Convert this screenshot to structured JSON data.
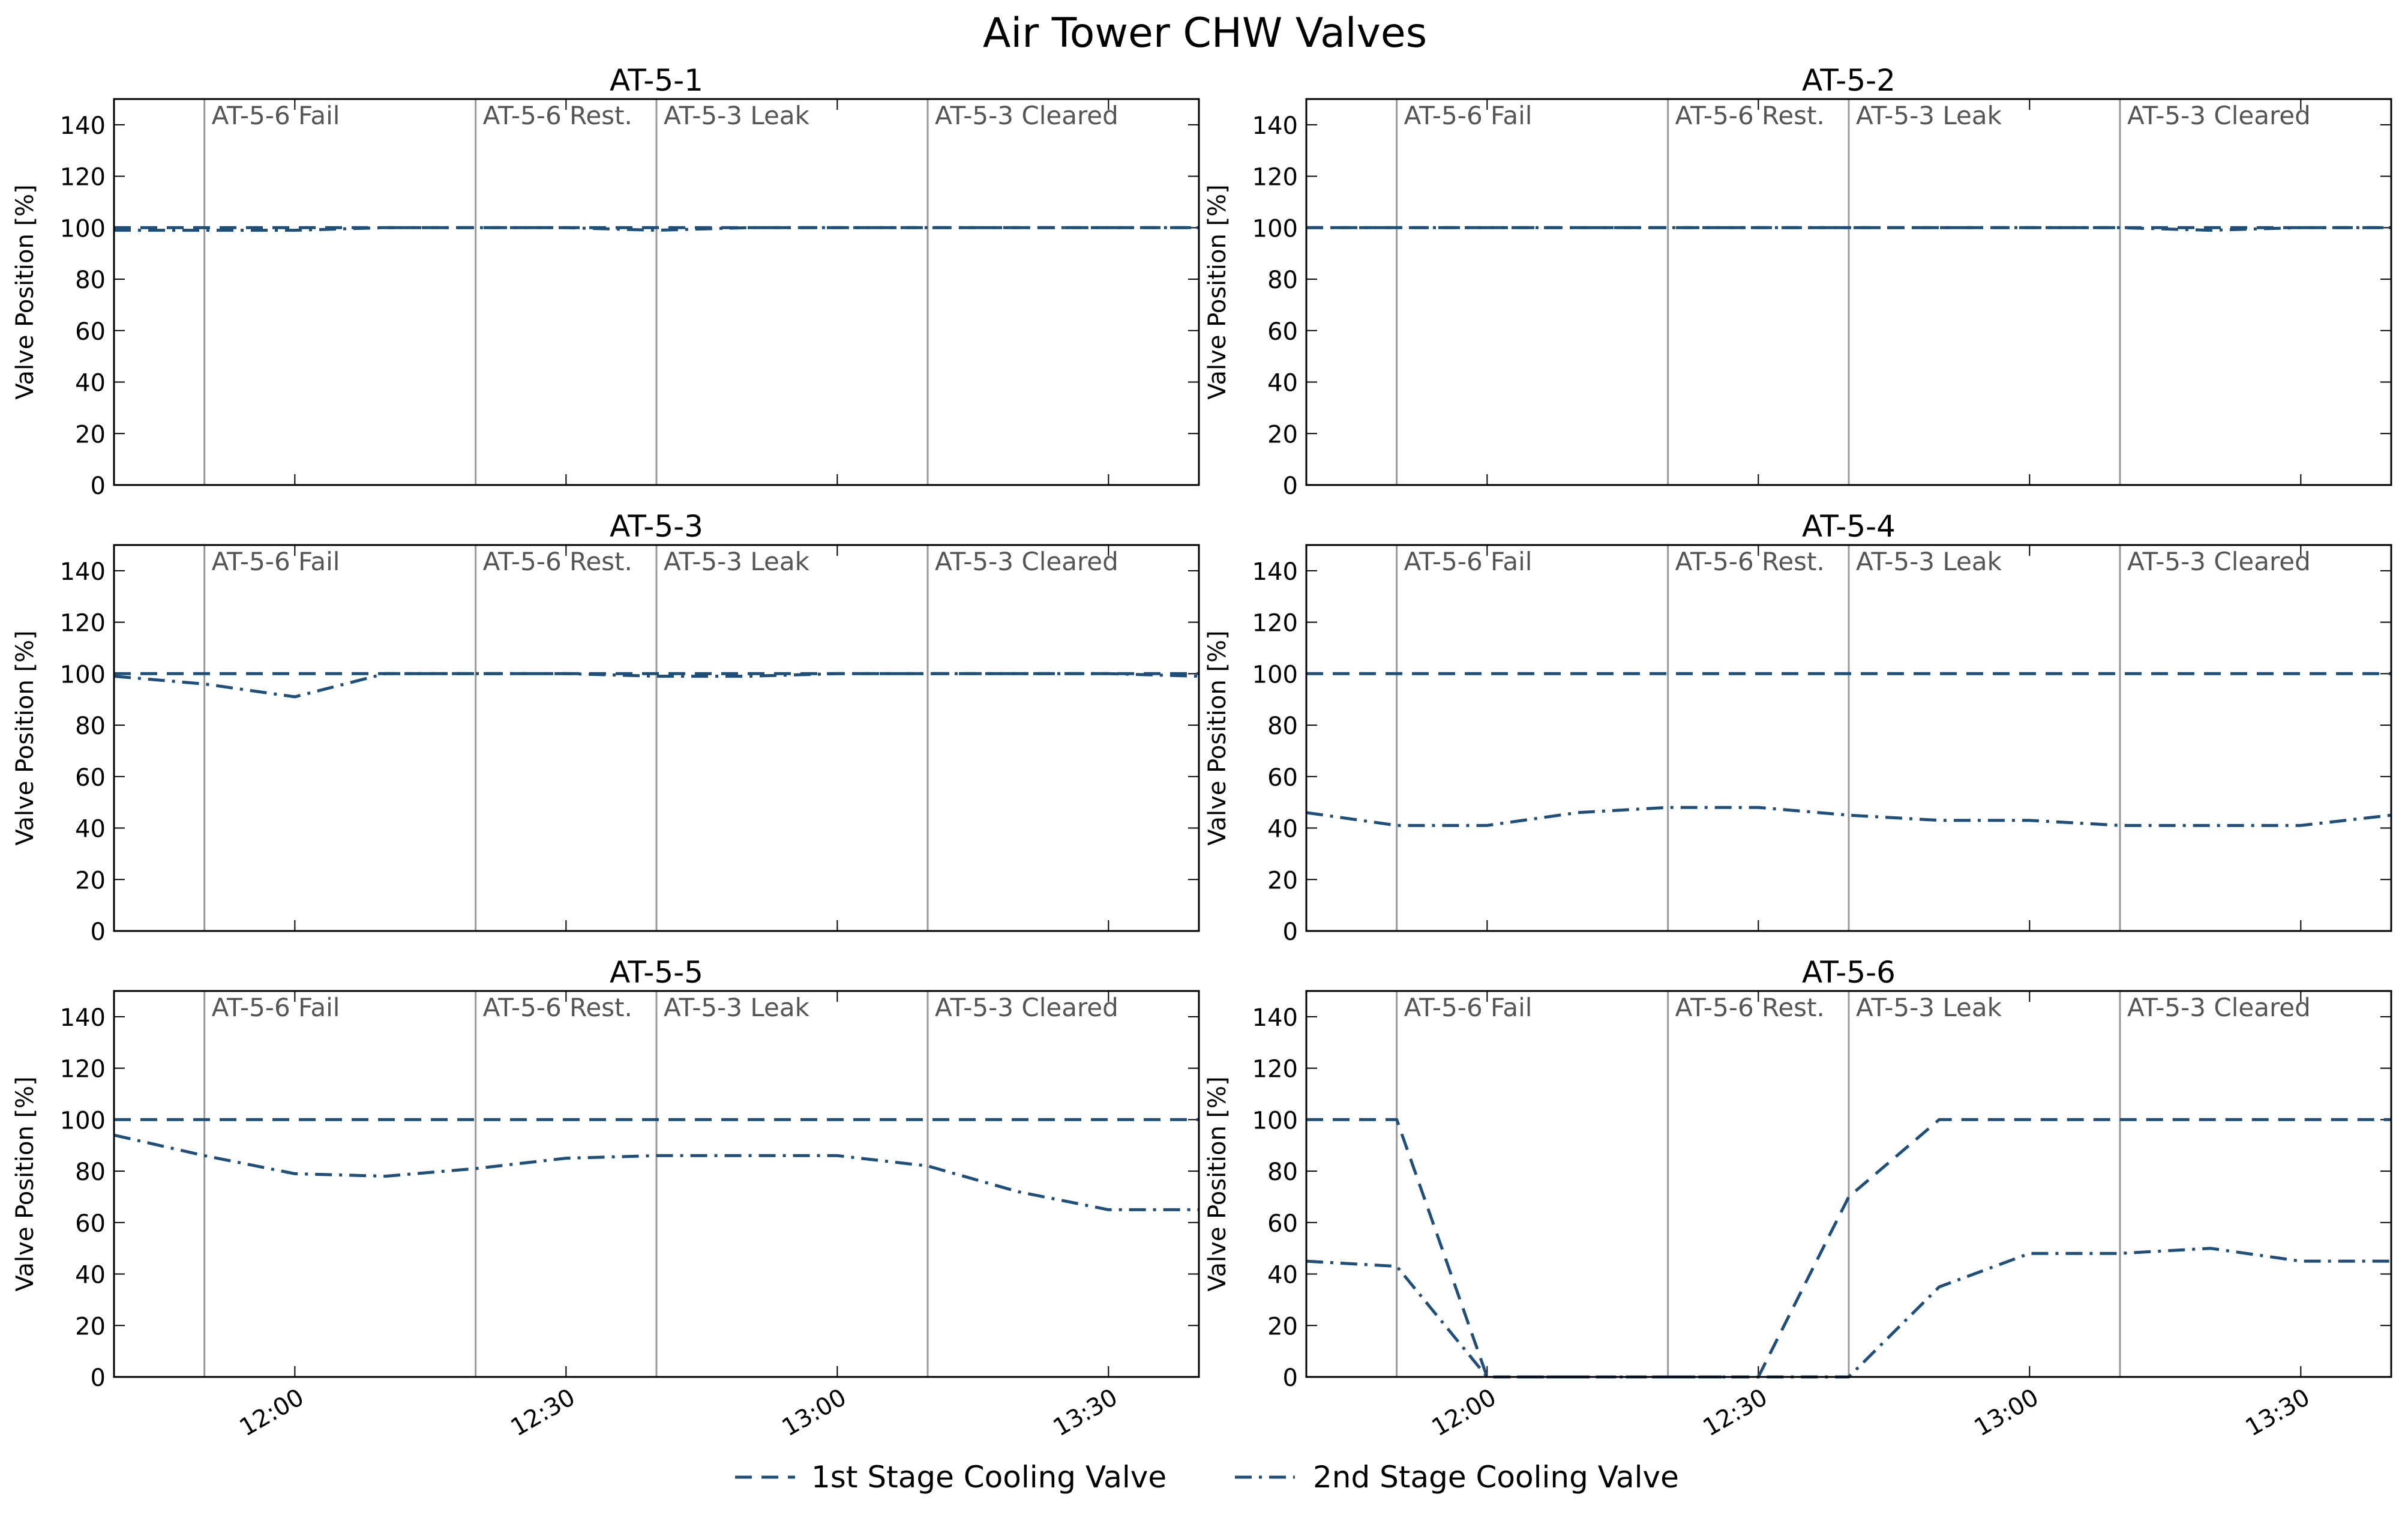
{
  "figure": {
    "title": "Air Tower CHW Valves"
  },
  "legend": {
    "placement": "bottom-center",
    "entries": [
      {
        "label": "1st Stage Cooling Valve",
        "style": "dashed",
        "color": "#1f4e79"
      },
      {
        "label": "2nd Stage Cooling Valve",
        "style": "dashdot",
        "color": "#1f4e79"
      }
    ]
  },
  "colors": {
    "series": "#1f4e79",
    "event_line": "#999999",
    "event_text": "#555555"
  },
  "chart_data": [
    {
      "type": "line",
      "title": "AT-5-1",
      "ylabel": "Valve Position [%]",
      "xlim": [
        "11:40",
        "13:40"
      ],
      "ylim": [
        0,
        150
      ],
      "yticks": [
        0,
        20,
        40,
        60,
        80,
        100,
        120,
        140
      ],
      "xticks": [
        "12:00",
        "12:30",
        "13:00",
        "13:30"
      ],
      "xtick_labels_shown": false,
      "grid": false,
      "events": [
        {
          "time": "11:50",
          "label": "AT-5-6 Fail"
        },
        {
          "time": "12:20",
          "label": "AT-5-6 Rest."
        },
        {
          "time": "12:40",
          "label": "AT-5-3 Leak"
        },
        {
          "time": "13:10",
          "label": "AT-5-3 Cleared"
        }
      ],
      "series": [
        {
          "name": "1st Stage Cooling Valve",
          "style": "dashed",
          "x": [
            "11:40",
            "13:40"
          ],
          "y": [
            100,
            100
          ]
        },
        {
          "name": "2nd Stage Cooling Valve",
          "style": "dashdot",
          "x": [
            "11:40",
            "11:50",
            "12:00",
            "12:10",
            "12:20",
            "12:30",
            "12:40",
            "12:50",
            "13:00",
            "13:10",
            "13:20",
            "13:30",
            "13:40"
          ],
          "y": [
            99,
            99,
            99,
            100,
            100,
            100,
            99,
            100,
            100,
            100,
            100,
            100,
            100
          ]
        }
      ]
    },
    {
      "type": "line",
      "title": "AT-5-2",
      "ylabel": "Valve Position [%]",
      "xlim": [
        "11:40",
        "13:40"
      ],
      "ylim": [
        0,
        150
      ],
      "yticks": [
        0,
        20,
        40,
        60,
        80,
        100,
        120,
        140
      ],
      "xticks": [
        "12:00",
        "12:30",
        "13:00",
        "13:30"
      ],
      "xtick_labels_shown": false,
      "grid": false,
      "events": [
        {
          "time": "11:50",
          "label": "AT-5-6 Fail"
        },
        {
          "time": "12:20",
          "label": "AT-5-6 Rest."
        },
        {
          "time": "12:40",
          "label": "AT-5-3 Leak"
        },
        {
          "time": "13:10",
          "label": "AT-5-3 Cleared"
        }
      ],
      "series": [
        {
          "name": "1st Stage Cooling Valve",
          "style": "dashed",
          "x": [
            "11:40",
            "13:40"
          ],
          "y": [
            100,
            100
          ]
        },
        {
          "name": "2nd Stage Cooling Valve",
          "style": "dashdot",
          "x": [
            "11:40",
            "11:50",
            "12:00",
            "12:10",
            "12:20",
            "12:30",
            "12:40",
            "12:50",
            "13:00",
            "13:10",
            "13:20",
            "13:30",
            "13:40"
          ],
          "y": [
            100,
            100,
            100,
            100,
            100,
            100,
            100,
            100,
            100,
            100,
            99,
            100,
            100
          ]
        }
      ]
    },
    {
      "type": "line",
      "title": "AT-5-3",
      "ylabel": "Valve Position [%]",
      "xlim": [
        "11:40",
        "13:40"
      ],
      "ylim": [
        0,
        150
      ],
      "yticks": [
        0,
        20,
        40,
        60,
        80,
        100,
        120,
        140
      ],
      "xticks": [
        "12:00",
        "12:30",
        "13:00",
        "13:30"
      ],
      "xtick_labels_shown": false,
      "grid": false,
      "events": [
        {
          "time": "11:50",
          "label": "AT-5-6 Fail"
        },
        {
          "time": "12:20",
          "label": "AT-5-6 Rest."
        },
        {
          "time": "12:40",
          "label": "AT-5-3 Leak"
        },
        {
          "time": "13:10",
          "label": "AT-5-3 Cleared"
        }
      ],
      "series": [
        {
          "name": "1st Stage Cooling Valve",
          "style": "dashed",
          "x": [
            "11:40",
            "13:40"
          ],
          "y": [
            100,
            100
          ]
        },
        {
          "name": "2nd Stage Cooling Valve",
          "style": "dashdot",
          "x": [
            "11:40",
            "11:50",
            "12:00",
            "12:10",
            "12:20",
            "12:30",
            "12:40",
            "12:50",
            "13:00",
            "13:10",
            "13:20",
            "13:30",
            "13:40"
          ],
          "y": [
            99,
            96,
            91,
            100,
            100,
            100,
            99,
            99,
            100,
            100,
            100,
            100,
            99
          ]
        }
      ]
    },
    {
      "type": "line",
      "title": "AT-5-4",
      "ylabel": "Valve Position [%]",
      "xlim": [
        "11:40",
        "13:40"
      ],
      "ylim": [
        0,
        150
      ],
      "yticks": [
        0,
        20,
        40,
        60,
        80,
        100,
        120,
        140
      ],
      "xticks": [
        "12:00",
        "12:30",
        "13:00",
        "13:30"
      ],
      "xtick_labels_shown": false,
      "grid": false,
      "events": [
        {
          "time": "11:50",
          "label": "AT-5-6 Fail"
        },
        {
          "time": "12:20",
          "label": "AT-5-6 Rest."
        },
        {
          "time": "12:40",
          "label": "AT-5-3 Leak"
        },
        {
          "time": "13:10",
          "label": "AT-5-3 Cleared"
        }
      ],
      "series": [
        {
          "name": "1st Stage Cooling Valve",
          "style": "dashed",
          "x": [
            "11:40",
            "13:40"
          ],
          "y": [
            100,
            100
          ]
        },
        {
          "name": "2nd Stage Cooling Valve",
          "style": "dashdot",
          "x": [
            "11:40",
            "11:50",
            "12:00",
            "12:10",
            "12:20",
            "12:30",
            "12:40",
            "12:50",
            "13:00",
            "13:10",
            "13:20",
            "13:30",
            "13:40"
          ],
          "y": [
            46,
            41,
            41,
            46,
            48,
            48,
            45,
            43,
            43,
            41,
            41,
            41,
            45
          ]
        }
      ]
    },
    {
      "type": "line",
      "title": "AT-5-5",
      "ylabel": "Valve Position [%]",
      "xlim": [
        "11:40",
        "13:40"
      ],
      "ylim": [
        0,
        150
      ],
      "yticks": [
        0,
        20,
        40,
        60,
        80,
        100,
        120,
        140
      ],
      "xticks": [
        "12:00",
        "12:30",
        "13:00",
        "13:30"
      ],
      "xtick_labels_shown": true,
      "grid": false,
      "events": [
        {
          "time": "11:50",
          "label": "AT-5-6 Fail"
        },
        {
          "time": "12:20",
          "label": "AT-5-6 Rest."
        },
        {
          "time": "12:40",
          "label": "AT-5-3 Leak"
        },
        {
          "time": "13:10",
          "label": "AT-5-3 Cleared"
        }
      ],
      "series": [
        {
          "name": "1st Stage Cooling Valve",
          "style": "dashed",
          "x": [
            "11:40",
            "13:40"
          ],
          "y": [
            100,
            100
          ]
        },
        {
          "name": "2nd Stage Cooling Valve",
          "style": "dashdot",
          "x": [
            "11:40",
            "11:50",
            "12:00",
            "12:10",
            "12:20",
            "12:30",
            "12:40",
            "12:50",
            "13:00",
            "13:10",
            "13:20",
            "13:30",
            "13:40"
          ],
          "y": [
            94,
            86,
            79,
            78,
            81,
            85,
            86,
            86,
            86,
            82,
            72,
            65,
            65
          ]
        }
      ]
    },
    {
      "type": "line",
      "title": "AT-5-6",
      "ylabel": "Valve Position [%]",
      "xlim": [
        "11:40",
        "13:40"
      ],
      "ylim": [
        0,
        150
      ],
      "yticks": [
        0,
        20,
        40,
        60,
        80,
        100,
        120,
        140
      ],
      "xticks": [
        "12:00",
        "12:30",
        "13:00",
        "13:30"
      ],
      "xtick_labels_shown": true,
      "grid": false,
      "events": [
        {
          "time": "11:50",
          "label": "AT-5-6 Fail"
        },
        {
          "time": "12:20",
          "label": "AT-5-6 Rest."
        },
        {
          "time": "12:40",
          "label": "AT-5-3 Leak"
        },
        {
          "time": "13:10",
          "label": "AT-5-3 Cleared"
        }
      ],
      "series": [
        {
          "name": "1st Stage Cooling Valve",
          "style": "dashed",
          "x": [
            "11:40",
            "11:50",
            "12:00",
            "12:10",
            "12:20",
            "12:30",
            "12:40",
            "12:50",
            "13:00",
            "13:10",
            "13:20",
            "13:30",
            "13:40"
          ],
          "y": [
            100,
            100,
            0,
            0,
            0,
            0,
            70,
            100,
            100,
            100,
            100,
            100,
            100
          ]
        },
        {
          "name": "2nd Stage Cooling Valve",
          "style": "dashdot",
          "x": [
            "11:40",
            "11:50",
            "12:00",
            "12:10",
            "12:20",
            "12:30",
            "12:40",
            "12:50",
            "13:00",
            "13:10",
            "13:20",
            "13:30",
            "13:40"
          ],
          "y": [
            45,
            43,
            0,
            0,
            0,
            0,
            0,
            35,
            48,
            48,
            50,
            45,
            45
          ]
        }
      ]
    }
  ]
}
